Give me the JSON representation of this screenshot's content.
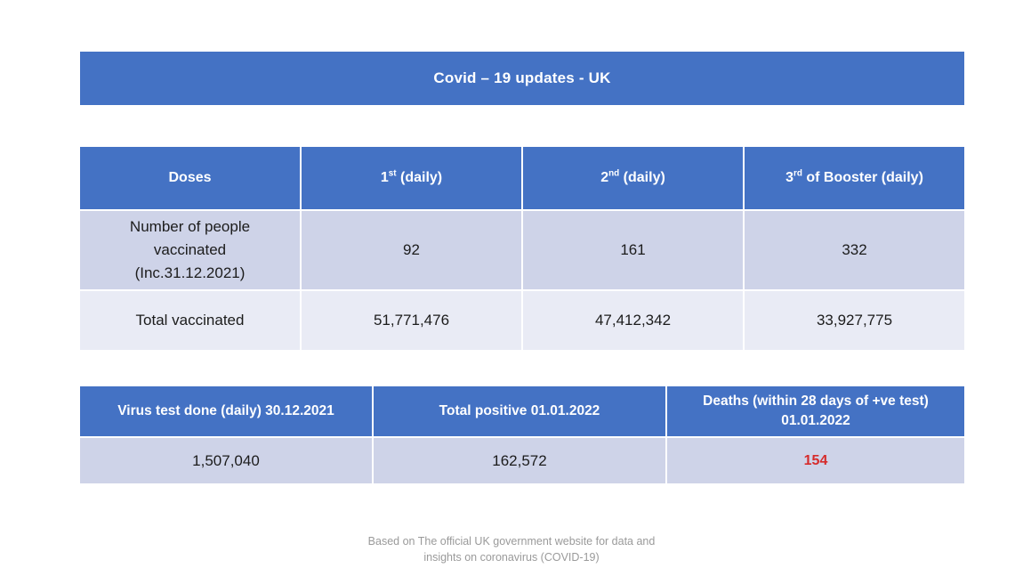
{
  "title_banner": {
    "text": "Covid – 19 updates - UK"
  },
  "colors": {
    "header_blue": "#4472C4",
    "band_dark": "#CED3E8",
    "band_light": "#E9EBF5",
    "deaths_red": "#D62B2B",
    "text_dark": "#1C1C1C",
    "footer_gray": "#9A9A9A"
  },
  "doses_table": {
    "header_doses": "Doses",
    "ordinal_headers": [
      {
        "base": "1",
        "sup": "st",
        "rest": "(daily)"
      },
      {
        "base": "2",
        "sup": "nd",
        "rest": "(daily)"
      },
      {
        "base": "3",
        "sup": "rd",
        "rest": "of Booster (daily)"
      }
    ],
    "rows": [
      {
        "label": "Number of people vaccinated (Inc.31.12.2021)",
        "values": [
          "92",
          "161",
          "332"
        ]
      },
      {
        "label": "Total vaccinated",
        "values": [
          "51,771,476",
          "47,412,342",
          "33,927,775"
        ]
      }
    ]
  },
  "stats_table": {
    "headers": [
      "Virus test done (daily) 30.12.2021",
      "Total positive 01.01.2022",
      "Deaths (within 28 days of +ve test) 01.01.2022"
    ],
    "values": [
      "1,507,040",
      "162,572",
      "154"
    ]
  },
  "footer": {
    "line1": "Based on The official UK government website for data and",
    "line2": "insights on coronavirus (COVID-19)"
  }
}
